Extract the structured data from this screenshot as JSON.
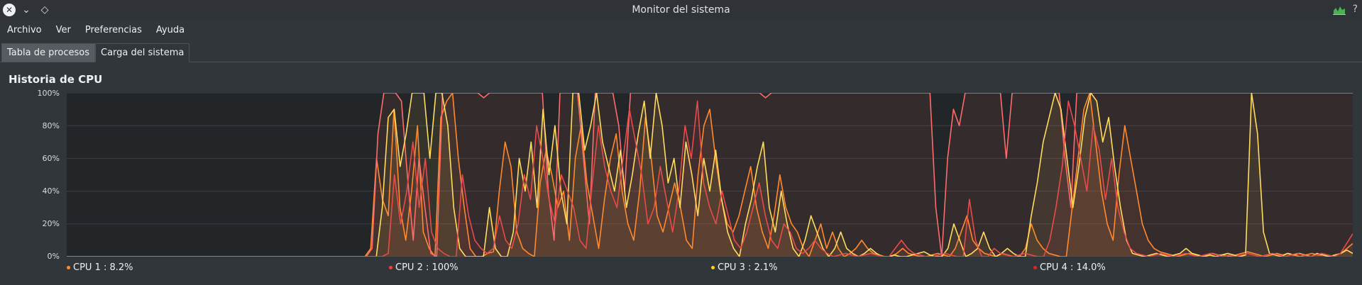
{
  "window": {
    "title": "Monitor del sistema"
  },
  "menu": [
    "Archivo",
    "Ver",
    "Preferencias",
    "Ayuda"
  ],
  "tabs": [
    {
      "label": "Tabla de procesos",
      "active": false
    },
    {
      "label": "Carga del sistema",
      "active": true
    }
  ],
  "section_title": "Historia de CPU",
  "help_glyph": "?",
  "chart_data": {
    "type": "line",
    "title": "Historia de CPU",
    "ylim": [
      0,
      100
    ],
    "yticks": [
      "100%",
      "80%",
      "60%",
      "40%",
      "20%",
      "0%"
    ],
    "grid": true,
    "legend": "bottom",
    "colors": {
      "background_chart": "#232629",
      "cpu_fill": "#7a2a1c"
    },
    "series": [
      {
        "name": "CPU 1",
        "legend_label": "CPU 1 : 8.2%",
        "color": "#ff8a2d",
        "values": [
          0,
          0,
          0,
          0,
          0,
          0,
          0,
          0,
          0,
          0,
          0,
          0,
          0,
          0,
          0,
          0,
          0,
          0,
          0,
          0,
          0,
          0,
          0,
          0,
          0,
          0,
          0,
          0,
          0,
          0,
          0,
          0,
          0,
          0,
          0,
          0,
          0,
          0,
          0,
          0,
          0,
          0,
          0,
          0,
          0,
          0,
          0,
          0,
          0,
          0,
          0,
          0,
          5,
          60,
          35,
          25,
          90,
          30,
          10,
          40,
          80,
          15,
          5,
          0,
          85,
          95,
          100,
          60,
          30,
          5,
          0,
          0,
          2,
          3,
          40,
          70,
          55,
          15,
          5,
          2,
          0,
          45,
          65,
          50,
          30,
          40,
          10,
          60,
          80,
          45,
          25,
          5,
          35,
          60,
          75,
          40,
          20,
          10,
          40,
          85,
          60,
          25,
          15,
          30,
          45,
          30,
          10,
          5,
          50,
          80,
          90,
          60,
          35,
          20,
          15,
          25,
          40,
          55,
          30,
          15,
          5,
          25,
          50,
          30,
          20,
          15,
          5,
          0,
          10,
          20,
          5,
          15,
          5,
          0,
          2,
          5,
          10,
          5,
          2,
          1,
          0,
          0,
          2,
          5,
          2,
          1,
          0,
          0,
          1,
          2,
          1,
          0,
          5,
          15,
          25,
          10,
          5,
          2,
          1,
          0,
          2,
          1,
          0,
          0,
          5,
          20,
          10,
          5,
          2,
          1,
          0,
          0,
          30,
          60,
          90,
          100,
          70,
          40,
          20,
          10,
          50,
          80,
          60,
          40,
          20,
          10,
          5,
          3,
          2,
          1,
          0,
          1,
          2,
          1,
          0,
          1,
          2,
          1,
          1,
          0,
          1,
          2,
          3,
          2,
          1,
          0,
          1,
          2,
          1,
          2,
          1,
          0,
          1,
          2,
          1,
          1,
          0,
          1,
          2,
          5,
          8
        ]
      },
      {
        "name": "CPU 2",
        "legend_label": "CPU 2 : 100%",
        "color": "#ff6b6b",
        "values": [
          0,
          0,
          0,
          0,
          0,
          0,
          0,
          0,
          0,
          0,
          0,
          0,
          0,
          0,
          0,
          0,
          0,
          0,
          0,
          0,
          0,
          0,
          0,
          0,
          0,
          0,
          0,
          0,
          0,
          0,
          0,
          0,
          0,
          0,
          0,
          0,
          0,
          0,
          0,
          0,
          0,
          0,
          0,
          0,
          0,
          0,
          0,
          0,
          0,
          0,
          0,
          0,
          5,
          75,
          100,
          100,
          100,
          95,
          50,
          10,
          60,
          30,
          2,
          0,
          100,
          100,
          100,
          100,
          100,
          100,
          100,
          97,
          100,
          100,
          100,
          100,
          100,
          100,
          100,
          100,
          100,
          100,
          40,
          10,
          100,
          100,
          100,
          100,
          60,
          20,
          100,
          100,
          100,
          100,
          80,
          40,
          100,
          100,
          100,
          100,
          100,
          100,
          100,
          100,
          100,
          100,
          100,
          100,
          100,
          100,
          100,
          100,
          100,
          100,
          100,
          100,
          100,
          100,
          100,
          97,
          100,
          100,
          100,
          100,
          100,
          100,
          100,
          100,
          100,
          100,
          100,
          100,
          100,
          100,
          100,
          100,
          100,
          100,
          100,
          100,
          100,
          100,
          100,
          100,
          100,
          100,
          100,
          100,
          30,
          0,
          60,
          90,
          80,
          100,
          100,
          100,
          100,
          100,
          100,
          100,
          60,
          100,
          100,
          100,
          100,
          100,
          100,
          100,
          100,
          100,
          60,
          30,
          100,
          100,
          100,
          100,
          100,
          100,
          100,
          100,
          100,
          100,
          100,
          100,
          100,
          100,
          100,
          100,
          100,
          100,
          100,
          100,
          100,
          100,
          100,
          100,
          100,
          100,
          100,
          100,
          100,
          100,
          100,
          100,
          100,
          100,
          100,
          100,
          100,
          100,
          100,
          100,
          100,
          100,
          100,
          100,
          100,
          100,
          100,
          100
        ]
      },
      {
        "name": "CPU 3",
        "legend_label": "CPU 3 : 2.1%",
        "color": "#ffdc5e",
        "values": [
          0,
          0,
          0,
          0,
          0,
          0,
          0,
          0,
          0,
          0,
          0,
          0,
          0,
          0,
          0,
          0,
          0,
          0,
          0,
          0,
          0,
          0,
          0,
          0,
          0,
          0,
          0,
          0,
          0,
          0,
          0,
          0,
          0,
          0,
          0,
          0,
          0,
          0,
          0,
          0,
          0,
          0,
          0,
          0,
          0,
          0,
          0,
          0,
          0,
          0,
          0,
          0,
          0,
          30,
          85,
          90,
          55,
          75,
          100,
          100,
          100,
          60,
          100,
          100,
          80,
          30,
          5,
          0,
          0,
          0,
          0,
          30,
          5,
          0,
          0,
          15,
          60,
          40,
          70,
          30,
          90,
          50,
          80,
          40,
          20,
          100,
          100,
          65,
          80,
          100,
          70,
          55,
          40,
          65,
          30,
          50,
          75,
          95,
          60,
          100,
          80,
          45,
          60,
          30,
          70,
          50,
          25,
          60,
          40,
          65,
          35,
          15,
          5,
          0,
          20,
          35,
          55,
          70,
          30,
          15,
          40,
          20,
          5,
          0,
          10,
          25,
          15,
          5,
          0,
          5,
          15,
          5,
          2,
          0,
          2,
          5,
          2,
          0,
          0,
          1,
          0,
          0,
          1,
          2,
          3,
          1,
          0,
          0,
          5,
          20,
          10,
          0,
          2,
          5,
          15,
          5,
          0,
          2,
          5,
          2,
          0,
          0,
          25,
          45,
          70,
          85,
          100,
          90,
          60,
          30,
          55,
          85,
          100,
          95,
          70,
          85,
          55,
          30,
          10,
          2,
          1,
          0,
          1,
          2,
          1,
          0,
          1,
          2,
          5,
          2,
          1,
          0,
          1,
          0,
          1,
          2,
          1,
          0,
          1,
          100,
          75,
          15,
          2,
          1,
          0,
          2,
          1,
          2,
          1,
          0,
          2,
          1,
          0,
          1,
          2,
          4,
          2
        ]
      },
      {
        "name": "CPU 4",
        "legend_label": "CPU 4 : 14.0%",
        "color": "#e84b4b",
        "values": [
          0,
          0,
          0,
          0,
          0,
          0,
          0,
          0,
          0,
          0,
          0,
          0,
          0,
          0,
          0,
          0,
          0,
          0,
          0,
          0,
          0,
          0,
          0,
          0,
          0,
          0,
          0,
          0,
          0,
          0,
          0,
          0,
          0,
          0,
          0,
          0,
          0,
          0,
          0,
          0,
          0,
          0,
          0,
          0,
          0,
          0,
          0,
          0,
          0,
          0,
          0,
          0,
          2,
          50,
          20,
          40,
          70,
          30,
          60,
          15,
          5,
          2,
          0,
          0,
          50,
          25,
          10,
          5,
          2,
          5,
          25,
          10,
          5,
          20,
          50,
          35,
          80,
          60,
          35,
          20,
          50,
          40,
          30,
          10,
          5,
          45,
          80,
          55,
          40,
          30,
          60,
          90,
          70,
          50,
          20,
          30,
          55,
          35,
          15,
          40,
          80,
          60,
          95,
          45,
          30,
          20,
          40,
          25,
          10,
          5,
          15,
          30,
          45,
          25,
          10,
          5,
          20,
          15,
          5,
          2,
          5,
          10,
          5,
          2,
          0,
          1,
          2,
          1,
          0,
          1,
          2,
          1,
          0,
          0,
          5,
          10,
          5,
          2,
          1,
          0,
          0,
          1,
          2,
          1,
          0,
          0,
          35,
          10,
          0,
          0,
          5,
          2,
          1,
          0,
          1,
          2,
          1,
          0,
          0,
          10,
          30,
          55,
          95,
          80,
          60,
          40,
          80,
          65,
          35,
          60,
          30,
          15,
          5,
          2,
          1,
          0,
          1,
          2,
          1,
          0,
          1,
          2,
          1,
          0,
          1,
          2,
          1,
          0,
          1,
          0,
          1,
          2,
          1,
          0,
          1,
          2,
          1,
          0,
          1,
          2,
          1,
          0,
          1,
          2,
          1,
          0,
          2,
          8,
          14
        ]
      }
    ]
  }
}
